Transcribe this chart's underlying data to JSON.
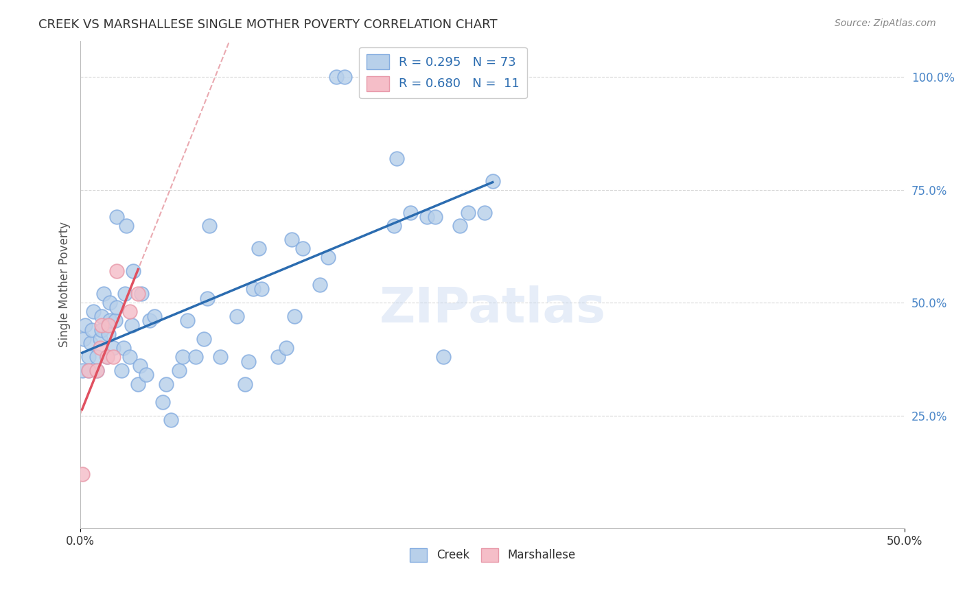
{
  "title": "CREEK VS MARSHALLESE SINGLE MOTHER POVERTY CORRELATION CHART",
  "source": "Source: ZipAtlas.com",
  "ylabel": "Single Mother Poverty",
  "xlim": [
    0.0,
    0.5
  ],
  "ylim": [
    0.0,
    1.08
  ],
  "xticks": [
    0.0,
    0.5
  ],
  "xticklabels_left": "0.0%",
  "xticklabels_right": "50.0%",
  "yticks": [
    0.25,
    0.5,
    0.75,
    1.0
  ],
  "yticklabels": [
    "25.0%",
    "50.0%",
    "75.0%",
    "100.0%"
  ],
  "creek_color": "#b8d0ea",
  "marshallese_color": "#f5bec8",
  "creek_edge_color": "#85ade0",
  "marshallese_edge_color": "#e89aaa",
  "blue_line_color": "#2b6cb0",
  "pink_line_color": "#e05060",
  "diag_line_color": "#e8a0a8",
  "legend_text_color": "#2b6cb0",
  "creek_x": [
    0.001,
    0.002,
    0.003,
    0.005,
    0.005,
    0.006,
    0.007,
    0.008,
    0.01,
    0.01,
    0.012,
    0.013,
    0.013,
    0.014,
    0.016,
    0.017,
    0.018,
    0.018,
    0.02,
    0.021,
    0.022,
    0.022,
    0.025,
    0.026,
    0.027,
    0.028,
    0.03,
    0.031,
    0.032,
    0.035,
    0.036,
    0.037,
    0.04,
    0.042,
    0.045,
    0.05,
    0.052,
    0.055,
    0.06,
    0.062,
    0.065,
    0.07,
    0.075,
    0.077,
    0.078,
    0.085,
    0.095,
    0.1,
    0.102,
    0.105,
    0.108,
    0.11,
    0.12,
    0.125,
    0.128,
    0.13,
    0.135,
    0.145,
    0.15,
    0.155,
    0.16,
    0.18,
    0.185,
    0.19,
    0.192,
    0.2,
    0.21,
    0.215,
    0.22,
    0.23,
    0.235,
    0.245,
    0.25
  ],
  "creek_y": [
    0.35,
    0.42,
    0.45,
    0.35,
    0.38,
    0.41,
    0.44,
    0.48,
    0.35,
    0.38,
    0.42,
    0.44,
    0.47,
    0.52,
    0.38,
    0.43,
    0.46,
    0.5,
    0.4,
    0.46,
    0.49,
    0.69,
    0.35,
    0.4,
    0.52,
    0.67,
    0.38,
    0.45,
    0.57,
    0.32,
    0.36,
    0.52,
    0.34,
    0.46,
    0.47,
    0.28,
    0.32,
    0.24,
    0.35,
    0.38,
    0.46,
    0.38,
    0.42,
    0.51,
    0.67,
    0.38,
    0.47,
    0.32,
    0.37,
    0.53,
    0.62,
    0.53,
    0.38,
    0.4,
    0.64,
    0.47,
    0.62,
    0.54,
    0.6,
    1.0,
    1.0,
    1.0,
    1.0,
    0.67,
    0.82,
    0.7,
    0.69,
    0.69,
    0.38,
    0.67,
    0.7,
    0.7,
    0.77
  ],
  "marsh_x": [
    0.001,
    0.005,
    0.01,
    0.012,
    0.013,
    0.016,
    0.017,
    0.02,
    0.022,
    0.03,
    0.035
  ],
  "marsh_y": [
    0.12,
    0.35,
    0.35,
    0.4,
    0.45,
    0.38,
    0.45,
    0.38,
    0.57,
    0.48,
    0.52
  ],
  "background_color": "#ffffff",
  "grid_color": "#d8d8d8",
  "title_color": "#333333",
  "axis_label_color": "#555555",
  "ytick_color": "#4a86c8",
  "source_color": "#888888"
}
